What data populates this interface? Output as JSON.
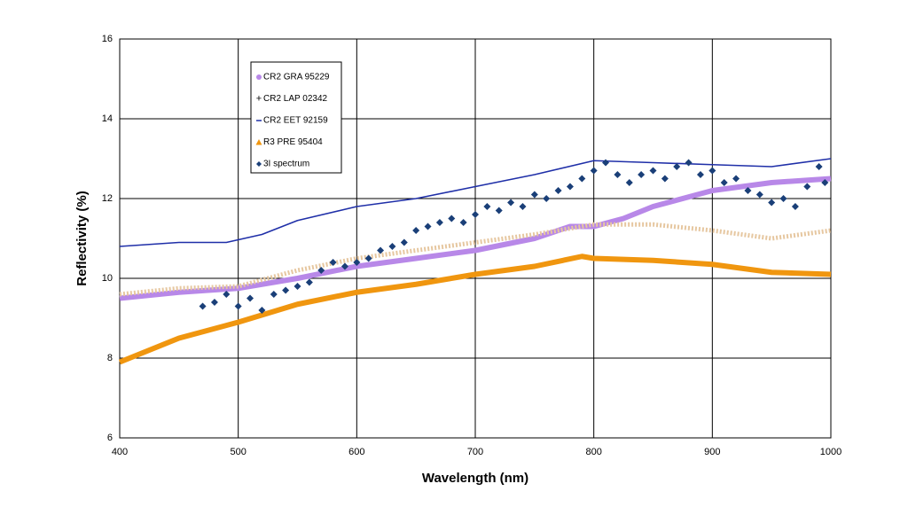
{
  "chart_data": {
    "type": "line",
    "x_label": "Wavelength (nm)",
    "y_label": "Reflectivity (%)",
    "xlim": [
      400,
      1000
    ],
    "ylim": [
      6,
      16
    ],
    "xticks": [
      400,
      500,
      600,
      700,
      800,
      900,
      1000
    ],
    "yticks": [
      6,
      8,
      10,
      12,
      14,
      16
    ],
    "grid": true,
    "legend": "upper left",
    "series": [
      {
        "name": "CR2 GRA 95229",
        "color": "#b888e8",
        "style": "thick",
        "x": [
          400,
          450,
          500,
          550,
          600,
          650,
          700,
          750,
          780,
          800,
          825,
          850,
          900,
          950,
          1000
        ],
        "values": [
          9.5,
          9.65,
          9.75,
          10.0,
          10.3,
          10.5,
          10.7,
          11.0,
          11.3,
          11.3,
          11.5,
          11.8,
          12.2,
          12.4,
          12.5
        ]
      },
      {
        "name": "CR2 LAP 02342",
        "color": "#e6c7a0",
        "style": "dotted",
        "x": [
          400,
          450,
          500,
          550,
          600,
          650,
          700,
          750,
          800,
          850,
          900,
          950,
          1000
        ],
        "values": [
          9.6,
          9.75,
          9.8,
          10.2,
          10.5,
          10.7,
          10.9,
          11.1,
          11.35,
          11.35,
          11.2,
          11.0,
          11.2
        ]
      },
      {
        "name": "CR2 EET 92159",
        "color": "#1f2fa8",
        "style": "thin",
        "x": [
          400,
          450,
          490,
          520,
          550,
          600,
          650,
          700,
          750,
          800,
          850,
          900,
          950,
          1000
        ],
        "values": [
          10.8,
          10.9,
          10.9,
          11.1,
          11.45,
          11.8,
          12.0,
          12.3,
          12.6,
          12.95,
          12.9,
          12.85,
          12.8,
          13.0
        ]
      },
      {
        "name": "R3 PRE 95404",
        "color": "#f0960f",
        "style": "thick",
        "x": [
          400,
          450,
          500,
          550,
          600,
          650,
          700,
          750,
          790,
          800,
          850,
          900,
          950,
          1000
        ],
        "values": [
          7.9,
          8.5,
          8.9,
          9.35,
          9.65,
          9.85,
          10.1,
          10.3,
          10.55,
          10.5,
          10.45,
          10.35,
          10.15,
          10.1
        ]
      },
      {
        "name": "3I spectrum",
        "color": "#1a3f78",
        "style": "scatter",
        "x": [
          470,
          480,
          490,
          500,
          510,
          520,
          530,
          540,
          550,
          560,
          570,
          580,
          590,
          600,
          610,
          620,
          630,
          640,
          650,
          660,
          670,
          680,
          690,
          700,
          710,
          720,
          730,
          740,
          750,
          760,
          770,
          780,
          790,
          800,
          810,
          820,
          830,
          840,
          850,
          860,
          870,
          880,
          890,
          900,
          910,
          920,
          930,
          940,
          950,
          960,
          970,
          980,
          990,
          995
        ],
        "values": [
          9.3,
          9.4,
          9.6,
          9.3,
          9.5,
          9.2,
          9.6,
          9.7,
          9.8,
          9.9,
          10.2,
          10.4,
          10.3,
          10.4,
          10.5,
          10.7,
          10.8,
          10.9,
          11.2,
          11.3,
          11.4,
          11.5,
          11.4,
          11.6,
          11.8,
          11.7,
          11.9,
          11.8,
          12.1,
          12.0,
          12.2,
          12.3,
          12.5,
          12.7,
          12.9,
          12.6,
          12.4,
          12.6,
          12.7,
          12.5,
          12.8,
          12.9,
          12.6,
          12.7,
          12.4,
          12.5,
          12.2,
          12.1,
          11.9,
          12.0,
          11.8,
          12.3,
          12.8,
          12.4
        ]
      }
    ]
  }
}
